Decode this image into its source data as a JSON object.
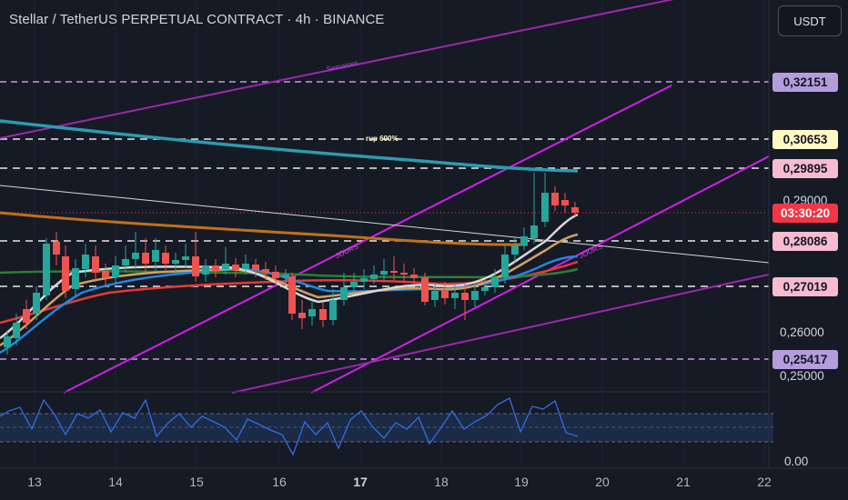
{
  "title": "Stellar / TetherUS PERPETUAL CONTRACT · 4h · BINANCE",
  "currency_button": "USDT",
  "price_labels": {
    "p1": "0,32151",
    "p2": "0,30653",
    "p3": "0,29895",
    "p4": "0,29000",
    "countdown": "03:30:20",
    "p5": "0,28086",
    "p6": "0,27019",
    "p7": "0,25417"
  },
  "price_scale": {
    "t1": "0,26000",
    "t2": "0,25000",
    "rsi_zero": "0.00"
  },
  "time_axis": [
    "13",
    "14",
    "15",
    "16",
    "17",
    "18",
    "19",
    "20",
    "21",
    "22"
  ],
  "annotations": {
    "weekly": "Semaines",
    "rup": "rup 600%",
    "daily_left": "JOURS",
    "daily_right": "JOURS"
  },
  "colors": {
    "background": "#161a25",
    "bull": "#26a69a",
    "bear": "#ef5350",
    "channel": "#c010e0",
    "purple_level": "#b39ddb",
    "pink_level": "#f8bbd0",
    "yellow_level": "#fff9c4",
    "countdown_bg": "#f23645"
  }
}
